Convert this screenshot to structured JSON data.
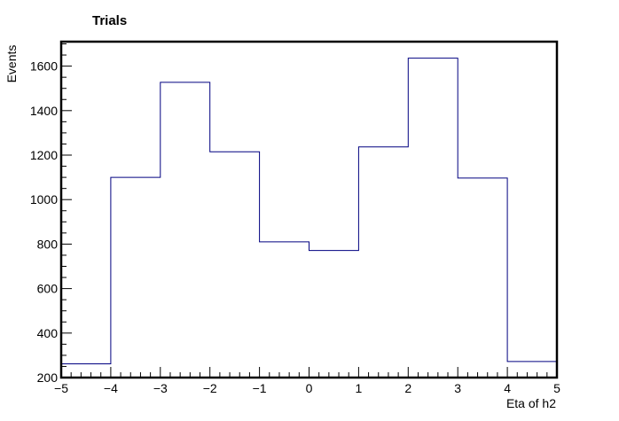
{
  "chart_data": {
    "type": "bar",
    "style": "step-histogram",
    "title": "Trials",
    "xlabel": "Eta of h2",
    "ylabel": "Events",
    "bin_edges": [
      -5,
      -4,
      -3,
      -2,
      -1,
      0,
      1,
      2,
      3,
      4,
      5
    ],
    "values": [
      262,
      1100,
      1527,
      1215,
      810,
      771,
      1237,
      1636,
      1097,
      272
    ],
    "xlim": [
      -5,
      5
    ],
    "ylim": [
      200,
      1710
    ],
    "x_ticks": [
      -5,
      -4,
      -3,
      -2,
      -1,
      0,
      1,
      2,
      3,
      4,
      5
    ],
    "x_tick_labels": [
      "−5",
      "−4",
      "−3",
      "−2",
      "−1",
      "0",
      "1",
      "2",
      "3",
      "4",
      "5"
    ],
    "y_ticks": [
      200,
      400,
      600,
      800,
      1000,
      1200,
      1400,
      1600
    ],
    "y_tick_labels": [
      "200",
      "400",
      "600",
      "800",
      "1000",
      "1200",
      "1400",
      "1600"
    ],
    "line_color": "#000080",
    "grid": false
  }
}
